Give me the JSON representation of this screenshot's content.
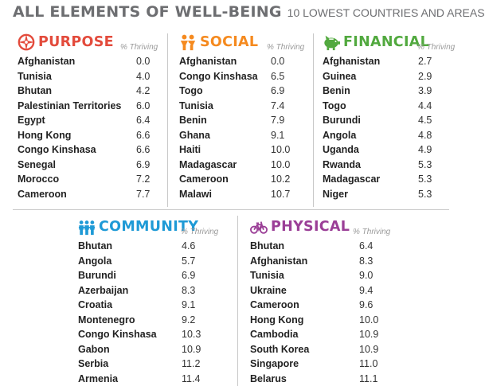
{
  "header": {
    "title": "ALL ELEMENTS OF WELL-BEING",
    "subtitle": "10 LOWEST COUNTRIES AND AREAS"
  },
  "colors": {
    "purpose": "#e34b3c",
    "social": "#f58a1f",
    "financial": "#52a93f",
    "community": "#1e9ad6",
    "physical": "#9b3f97",
    "title": "#6d6e71"
  },
  "chart_data": [
    {
      "type": "table",
      "title": "PURPOSE",
      "icon": "compass-icon",
      "value_label": "% Thriving",
      "categories": [
        "Afghanistan",
        "Tunisia",
        "Bhutan",
        "Palestinian Territories",
        "Egypt",
        "Hong Kong",
        "Congo Kinshasa",
        "Senegal",
        "Morocco",
        "Cameroon"
      ],
      "values": [
        0.0,
        4.0,
        4.2,
        6.0,
        6.4,
        6.6,
        6.6,
        6.9,
        7.2,
        7.7
      ],
      "display_values": [
        "0.0",
        "4.0",
        "4.2",
        "6.0",
        "6.4",
        "6.6",
        "6.6",
        "6.9",
        "7.2",
        "7.7"
      ]
    },
    {
      "type": "table",
      "title": "SOCIAL",
      "icon": "people-icon",
      "value_label": "% Thriving",
      "categories": [
        "Afghanistan",
        "Congo Kinshasa",
        "Togo",
        "Tunisia",
        "Benin",
        "Ghana",
        "Haiti",
        "Madagascar",
        "Cameroon",
        "Malawi"
      ],
      "values": [
        0.0,
        6.5,
        6.9,
        7.4,
        7.9,
        9.1,
        10.0,
        10.0,
        10.2,
        10.7
      ],
      "display_values": [
        "0.0",
        "6.5",
        "6.9",
        "7.4",
        "7.9",
        "9.1",
        "10.0",
        "10.0",
        "10.2",
        "10.7"
      ]
    },
    {
      "type": "table",
      "title": "FINANCIAL",
      "icon": "piggy-bank-icon",
      "value_label": "% Thriving",
      "categories": [
        "Afghanistan",
        "Guinea",
        "Benin",
        "Togo",
        "Burundi",
        "Angola",
        "Uganda",
        "Rwanda",
        "Madagascar",
        "Niger"
      ],
      "values": [
        2.7,
        2.9,
        3.9,
        4.4,
        4.5,
        4.8,
        4.9,
        5.3,
        5.3,
        5.3
      ],
      "display_values": [
        "2.7",
        "2.9",
        "3.9",
        "4.4",
        "4.5",
        "4.8",
        "4.9",
        "5.3",
        "5.3",
        "5.3"
      ]
    },
    {
      "type": "table",
      "title": "COMMUNITY",
      "icon": "community-icon",
      "value_label": "% Thriving",
      "categories": [
        "Bhutan",
        "Angola",
        "Burundi",
        "Azerbaijan",
        "Croatia",
        "Montenegro",
        "Congo Kinshasa",
        "Gabon",
        "Serbia",
        "Armenia"
      ],
      "values": [
        4.6,
        5.7,
        6.9,
        8.3,
        9.1,
        9.2,
        10.3,
        10.9,
        11.2,
        11.4
      ],
      "display_values": [
        "4.6",
        "5.7",
        "6.9",
        "8.3",
        "9.1",
        "9.2",
        "10.3",
        "10.9",
        "11.2",
        "11.4"
      ]
    },
    {
      "type": "table",
      "title": "PHYSICAL",
      "icon": "bicycle-icon",
      "value_label": "% Thriving",
      "categories": [
        "Bhutan",
        "Afghanistan",
        "Tunisia",
        "Ukraine",
        "Cameroon",
        "Hong Kong",
        "Cambodia",
        "South Korea",
        "Singapore",
        "Belarus"
      ],
      "values": [
        6.4,
        8.3,
        9.0,
        9.4,
        9.6,
        10.0,
        10.9,
        10.9,
        11.0,
        11.1
      ],
      "display_values": [
        "6.4",
        "8.3",
        "9.0",
        "9.4",
        "9.6",
        "10.0",
        "10.9",
        "10.9",
        "11.0",
        "11.1"
      ]
    }
  ]
}
